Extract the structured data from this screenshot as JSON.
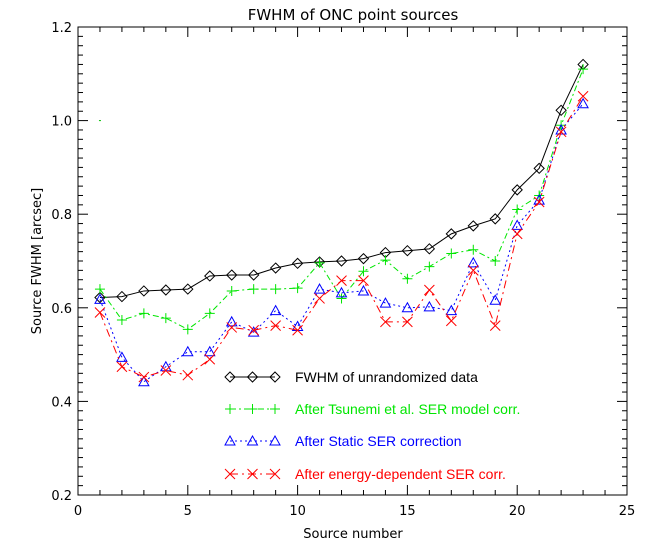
{
  "chart_data": {
    "type": "line",
    "title": "FWHM of ONC point sources",
    "xlabel": "Source number",
    "ylabel": "Source FWHM [arcsec]",
    "xlim": [
      0,
      25
    ],
    "ylim": [
      0.2,
      1.2
    ],
    "x_ticks": [
      0,
      5,
      10,
      15,
      20,
      25
    ],
    "y_ticks": [
      0.2,
      0.4,
      0.6,
      0.8,
      1.0,
      1.2
    ],
    "x_tick_labels": [
      "0",
      "5",
      "10",
      "15",
      "20",
      "25"
    ],
    "y_tick_labels": [
      "0.2",
      "0.4",
      "0.6",
      "0.8",
      "1.0",
      "1.2"
    ],
    "grid": false,
    "legend_position": "lower-center",
    "stray_marker": {
      "x": 1,
      "y": 1.0,
      "color": "#00c000"
    },
    "x": [
      1,
      2,
      3,
      4,
      5,
      6,
      7,
      8,
      9,
      10,
      11,
      12,
      13,
      14,
      15,
      16,
      17,
      18,
      19,
      20,
      21,
      22,
      23
    ],
    "series": [
      {
        "name": "FWHM of unrandomized data",
        "color": "#000000",
        "marker": "diamond",
        "dash": "",
        "values": [
          0.622,
          0.624,
          0.636,
          0.638,
          0.64,
          0.668,
          0.67,
          0.67,
          0.685,
          0.695,
          0.698,
          0.7,
          0.705,
          0.718,
          0.722,
          0.726,
          0.758,
          0.775,
          0.79,
          0.852,
          0.898,
          1.022,
          1.12
        ]
      },
      {
        "name": "After Tsunemi et al. SER model corr.",
        "color": "#00e600",
        "marker": "plus",
        "dash": "6 3 2 3",
        "values": [
          0.64,
          0.574,
          0.588,
          0.578,
          0.554,
          0.588,
          0.636,
          0.64,
          0.64,
          0.642,
          0.696,
          0.62,
          0.678,
          0.702,
          0.662,
          0.688,
          0.716,
          0.724,
          0.7,
          0.81,
          0.84,
          0.99,
          1.11
        ]
      },
      {
        "name": "After Static SER correction",
        "color": "#0000ff",
        "marker": "triangle",
        "dash": "2 3",
        "values": [
          0.618,
          0.494,
          0.442,
          0.474,
          0.506,
          0.506,
          0.57,
          0.548,
          0.594,
          0.56,
          0.64,
          0.632,
          0.636,
          0.61,
          0.6,
          0.602,
          0.594,
          0.696,
          0.616,
          0.776,
          0.83,
          0.98,
          1.036
        ]
      },
      {
        "name": "After energy-dependent SER corr.",
        "color": "#ff0000",
        "marker": "x",
        "dash": "8 4 2 4",
        "values": [
          0.59,
          0.474,
          0.452,
          0.466,
          0.456,
          0.49,
          0.558,
          0.552,
          0.562,
          0.552,
          0.62,
          0.658,
          0.658,
          0.57,
          0.57,
          0.638,
          0.572,
          0.68,
          0.562,
          0.758,
          0.826,
          0.976,
          1.052
        ]
      }
    ]
  }
}
